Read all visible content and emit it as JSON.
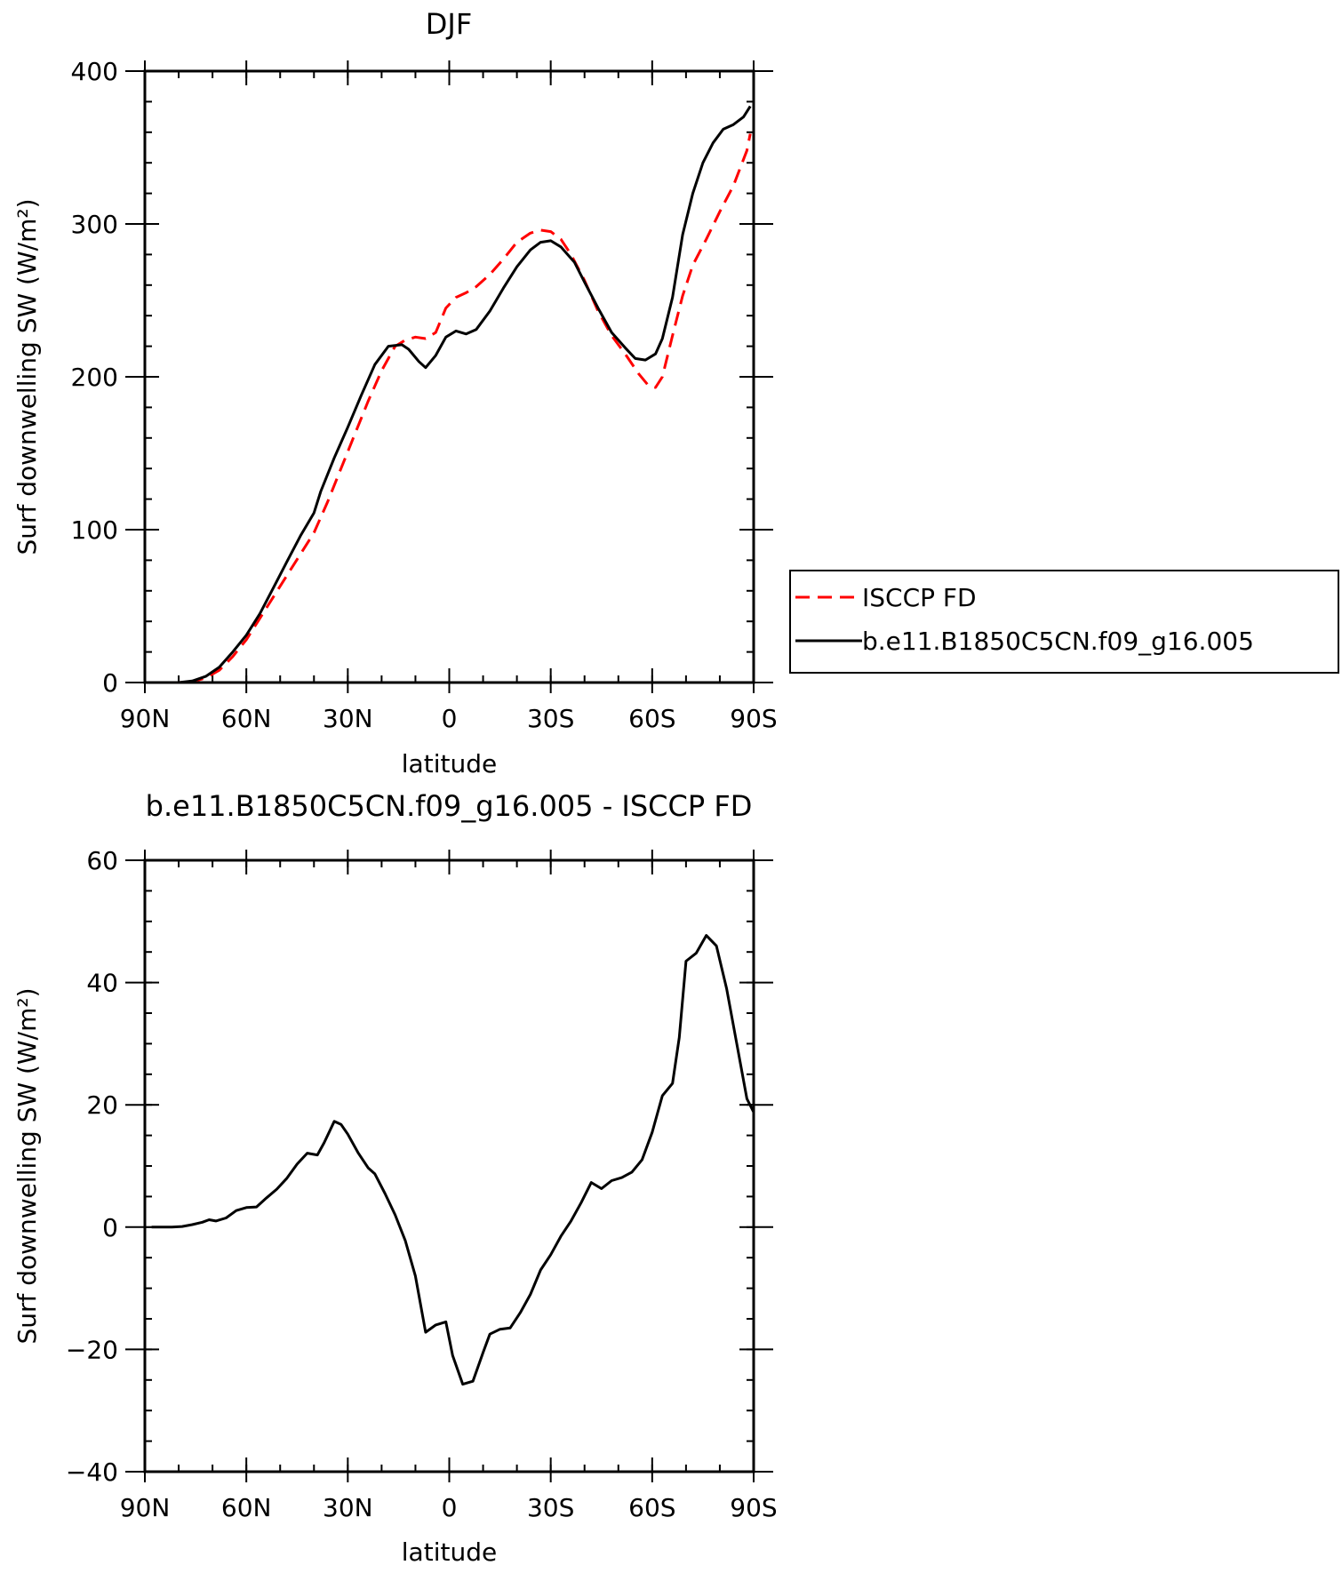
{
  "chart_data": [
    {
      "type": "line",
      "title": "DJF",
      "xlabel": "latitude",
      "ylabel": "Surf downwelling SW (W/m²)",
      "xlim": [
        -90,
        90
      ],
      "ylim": [
        0,
        400
      ],
      "x_ticks": [
        {
          "value": -90,
          "label": "90N"
        },
        {
          "value": -60,
          "label": "60N"
        },
        {
          "value": -30,
          "label": "30N"
        },
        {
          "value": 0,
          "label": "0"
        },
        {
          "value": 30,
          "label": "30S"
        },
        {
          "value": 60,
          "label": "60S"
        },
        {
          "value": 90,
          "label": "90S"
        }
      ],
      "y_ticks": [
        {
          "value": 0,
          "label": "0"
        },
        {
          "value": 100,
          "label": "100"
        },
        {
          "value": 200,
          "label": "200"
        },
        {
          "value": 300,
          "label": "300"
        },
        {
          "value": 400,
          "label": "400"
        }
      ],
      "legend_placement": "right",
      "series": [
        {
          "name": "ISCCP FD",
          "color": "#ff0000",
          "dash": "dashed",
          "points": [
            [
              -90,
              0
            ],
            [
              -85,
              0
            ],
            [
              -80,
              0
            ],
            [
              -76,
              0.5
            ],
            [
              -72,
              3
            ],
            [
              -68,
              8
            ],
            [
              -64,
              17
            ],
            [
              -60,
              28
            ],
            [
              -56,
              42
            ],
            [
              -52,
              56
            ],
            [
              -48,
              70
            ],
            [
              -44,
              84
            ],
            [
              -40,
              98
            ],
            [
              -36,
              118
            ],
            [
              -32,
              140
            ],
            [
              -28,
              162
            ],
            [
              -24,
              184
            ],
            [
              -20,
              204
            ],
            [
              -16,
              220
            ],
            [
              -13,
              224
            ],
            [
              -10,
              226
            ],
            [
              -7,
              225
            ],
            [
              -4,
              229
            ],
            [
              -1,
              245
            ],
            [
              2,
              252
            ],
            [
              5,
              255
            ],
            [
              8,
              259
            ],
            [
              12,
              267
            ],
            [
              16,
              277
            ],
            [
              20,
              288
            ],
            [
              24,
              294
            ],
            [
              27,
              296
            ],
            [
              30,
              295
            ],
            [
              33,
              290
            ],
            [
              36,
              280
            ],
            [
              40,
              263
            ],
            [
              44,
              243
            ],
            [
              48,
              227
            ],
            [
              52,
              215
            ],
            [
              56,
              202
            ],
            [
              59,
              194
            ],
            [
              61,
              193
            ],
            [
              63,
              200
            ],
            [
              66,
              227
            ],
            [
              69,
              253
            ],
            [
              72,
              273
            ],
            [
              76,
              290
            ],
            [
              80,
              308
            ],
            [
              84,
              325
            ],
            [
              88,
              348
            ],
            [
              89,
              359
            ]
          ]
        },
        {
          "name": "b.e11.B1850C5CN.f09_g16.005",
          "color": "#000000",
          "dash": "solid",
          "points": [
            [
              -90,
              0
            ],
            [
              -85,
              0
            ],
            [
              -80,
              0
            ],
            [
              -76,
              1
            ],
            [
              -72,
              4
            ],
            [
              -68,
              10
            ],
            [
              -64,
              20
            ],
            [
              -60,
              31
            ],
            [
              -56,
              45
            ],
            [
              -52,
              62
            ],
            [
              -48,
              79
            ],
            [
              -44,
              96
            ],
            [
              -40,
              111
            ],
            [
              -38,
              125
            ],
            [
              -34,
              147
            ],
            [
              -30,
              167
            ],
            [
              -26,
              188
            ],
            [
              -22,
              208
            ],
            [
              -18,
              220
            ],
            [
              -14,
              221
            ],
            [
              -12,
              218
            ],
            [
              -9,
              210
            ],
            [
              -7,
              206
            ],
            [
              -4,
              214
            ],
            [
              -1,
              226
            ],
            [
              2,
              230
            ],
            [
              5,
              228
            ],
            [
              8,
              231
            ],
            [
              12,
              243
            ],
            [
              16,
              258
            ],
            [
              20,
              272
            ],
            [
              24,
              283
            ],
            [
              27,
              288
            ],
            [
              30,
              289
            ],
            [
              33,
              285
            ],
            [
              37,
              275
            ],
            [
              40,
              262
            ],
            [
              44,
              245
            ],
            [
              48,
              229
            ],
            [
              52,
              219
            ],
            [
              55,
              212
            ],
            [
              58,
              211
            ],
            [
              61,
              215
            ],
            [
              63,
              225
            ],
            [
              66,
              252
            ],
            [
              69,
              293
            ],
            [
              72,
              320
            ],
            [
              75,
              340
            ],
            [
              78,
              353
            ],
            [
              81,
              362
            ],
            [
              84,
              365
            ],
            [
              87,
              370
            ],
            [
              89,
              377
            ]
          ]
        }
      ]
    },
    {
      "type": "line",
      "title": "b.e11.B1850C5CN.f09_g16.005 - ISCCP FD",
      "xlabel": "latitude",
      "ylabel": "Surf downwelling SW (W/m²)",
      "xlim": [
        -90,
        90
      ],
      "ylim": [
        -40,
        60
      ],
      "x_ticks": [
        {
          "value": -90,
          "label": "90N"
        },
        {
          "value": -60,
          "label": "60N"
        },
        {
          "value": -30,
          "label": "30N"
        },
        {
          "value": 0,
          "label": "0"
        },
        {
          "value": 30,
          "label": "30S"
        },
        {
          "value": 60,
          "label": "60S"
        },
        {
          "value": 90,
          "label": "90S"
        }
      ],
      "y_ticks": [
        {
          "value": -40,
          "label": "−40"
        },
        {
          "value": -20,
          "label": "−20"
        },
        {
          "value": 0,
          "label": "0"
        },
        {
          "value": 20,
          "label": "20"
        },
        {
          "value": 40,
          "label": "40"
        },
        {
          "value": 60,
          "label": "60"
        }
      ],
      "series": [
        {
          "color": "#000000",
          "dash": "solid",
          "points": [
            [
              -88,
              0
            ],
            [
              -85,
              0
            ],
            [
              -82,
              0
            ],
            [
              -79,
              0.1
            ],
            [
              -76,
              0.4
            ],
            [
              -73,
              0.8
            ],
            [
              -71,
              1.2
            ],
            [
              -69,
              1.0
            ],
            [
              -66,
              1.5
            ],
            [
              -63,
              2.7
            ],
            [
              -60,
              3.2
            ],
            [
              -57,
              3.3
            ],
            [
              -54,
              4.8
            ],
            [
              -51,
              6.2
            ],
            [
              -48,
              8.0
            ],
            [
              -45,
              10.3
            ],
            [
              -42,
              12.1
            ],
            [
              -39,
              11.8
            ],
            [
              -37,
              13.8
            ],
            [
              -34,
              17.3
            ],
            [
              -32,
              16.8
            ],
            [
              -30,
              15.2
            ],
            [
              -27,
              12.2
            ],
            [
              -24,
              9.7
            ],
            [
              -22,
              8.7
            ],
            [
              -19,
              5.5
            ],
            [
              -16,
              2.0
            ],
            [
              -13,
              -2.2
            ],
            [
              -10,
              -8.0
            ],
            [
              -7,
              -17.2
            ],
            [
              -4,
              -16.0
            ],
            [
              -1,
              -15.5
            ],
            [
              1,
              -21.0
            ],
            [
              4,
              -25.7
            ],
            [
              7,
              -25.2
            ],
            [
              10,
              -20.5
            ],
            [
              12,
              -17.5
            ],
            [
              15,
              -16.7
            ],
            [
              18,
              -16.5
            ],
            [
              21,
              -14.0
            ],
            [
              24,
              -11.0
            ],
            [
              27,
              -7.0
            ],
            [
              30,
              -4.5
            ],
            [
              33,
              -1.5
            ],
            [
              36,
              1.0
            ],
            [
              39,
              4.0
            ],
            [
              42,
              7.3
            ],
            [
              45,
              6.3
            ],
            [
              48,
              7.6
            ],
            [
              51,
              8.1
            ],
            [
              54,
              9.0
            ],
            [
              57,
              11.0
            ],
            [
              60,
              15.5
            ],
            [
              63,
              21.5
            ],
            [
              66,
              23.5
            ],
            [
              68,
              31.0
            ],
            [
              70,
              43.5
            ],
            [
              73,
              44.8
            ],
            [
              76,
              47.7
            ],
            [
              79,
              46.0
            ],
            [
              82,
              39.0
            ],
            [
              85,
              30.0
            ],
            [
              88,
              21.0
            ],
            [
              90,
              18.8
            ]
          ]
        }
      ]
    }
  ]
}
